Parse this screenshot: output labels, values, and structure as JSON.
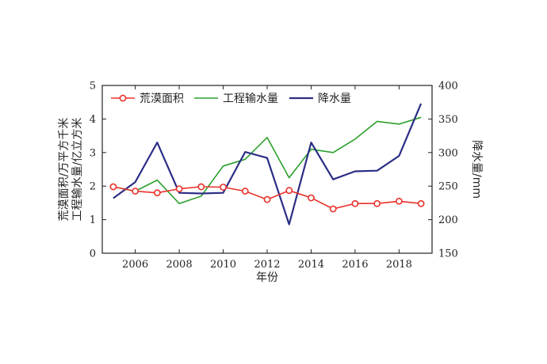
{
  "chart_data": {
    "type": "line",
    "x": [
      2005,
      2006,
      2007,
      2008,
      2009,
      2010,
      2011,
      2012,
      2013,
      2014,
      2015,
      2016,
      2017,
      2018,
      2019
    ],
    "x_ticks": [
      "2006",
      "2008",
      "2010",
      "2012",
      "2014",
      "2016",
      "2018"
    ],
    "x_tick_values": [
      2006,
      2008,
      2010,
      2012,
      2014,
      2016,
      2018
    ],
    "xlim": [
      2004.5,
      2019.5
    ],
    "xlabel": "年份",
    "ylabel_left_line1": "荒漠面积/万平方千米",
    "ylabel_left_line2": "工程输水量/亿立方米",
    "ylabel_right": "降水量/mm",
    "ylim_left": [
      0,
      5
    ],
    "y_ticks_left": [
      "0",
      "1",
      "2",
      "3",
      "4",
      "5"
    ],
    "ylim_right": [
      150,
      400
    ],
    "y_ticks_right": [
      "150",
      "200",
      "250",
      "300",
      "350",
      "400"
    ],
    "legend_position": "top-left",
    "grid": false,
    "series": [
      {
        "name": "荒漠面积",
        "axis": "left",
        "color": "#e8322a",
        "marker": "circle",
        "values": [
          1.98,
          1.85,
          1.8,
          1.92,
          1.98,
          1.97,
          1.85,
          1.6,
          1.87,
          1.65,
          1.32,
          1.48,
          1.48,
          1.55,
          1.48
        ]
      },
      {
        "name": "工程输水量",
        "axis": "left",
        "color": "#2ca02c",
        "marker": "none",
        "values": [
          1.98,
          1.85,
          2.18,
          1.48,
          1.7,
          2.6,
          2.8,
          3.45,
          2.25,
          3.1,
          3.0,
          3.4,
          3.93,
          3.85,
          4.05
        ]
      },
      {
        "name": "降水量",
        "axis": "right",
        "color": "#2b2e85",
        "marker": "none",
        "values": [
          232,
          256,
          315,
          240,
          239,
          240,
          301,
          292,
          193,
          315,
          260,
          272,
          273,
          295,
          373
        ]
      }
    ]
  }
}
